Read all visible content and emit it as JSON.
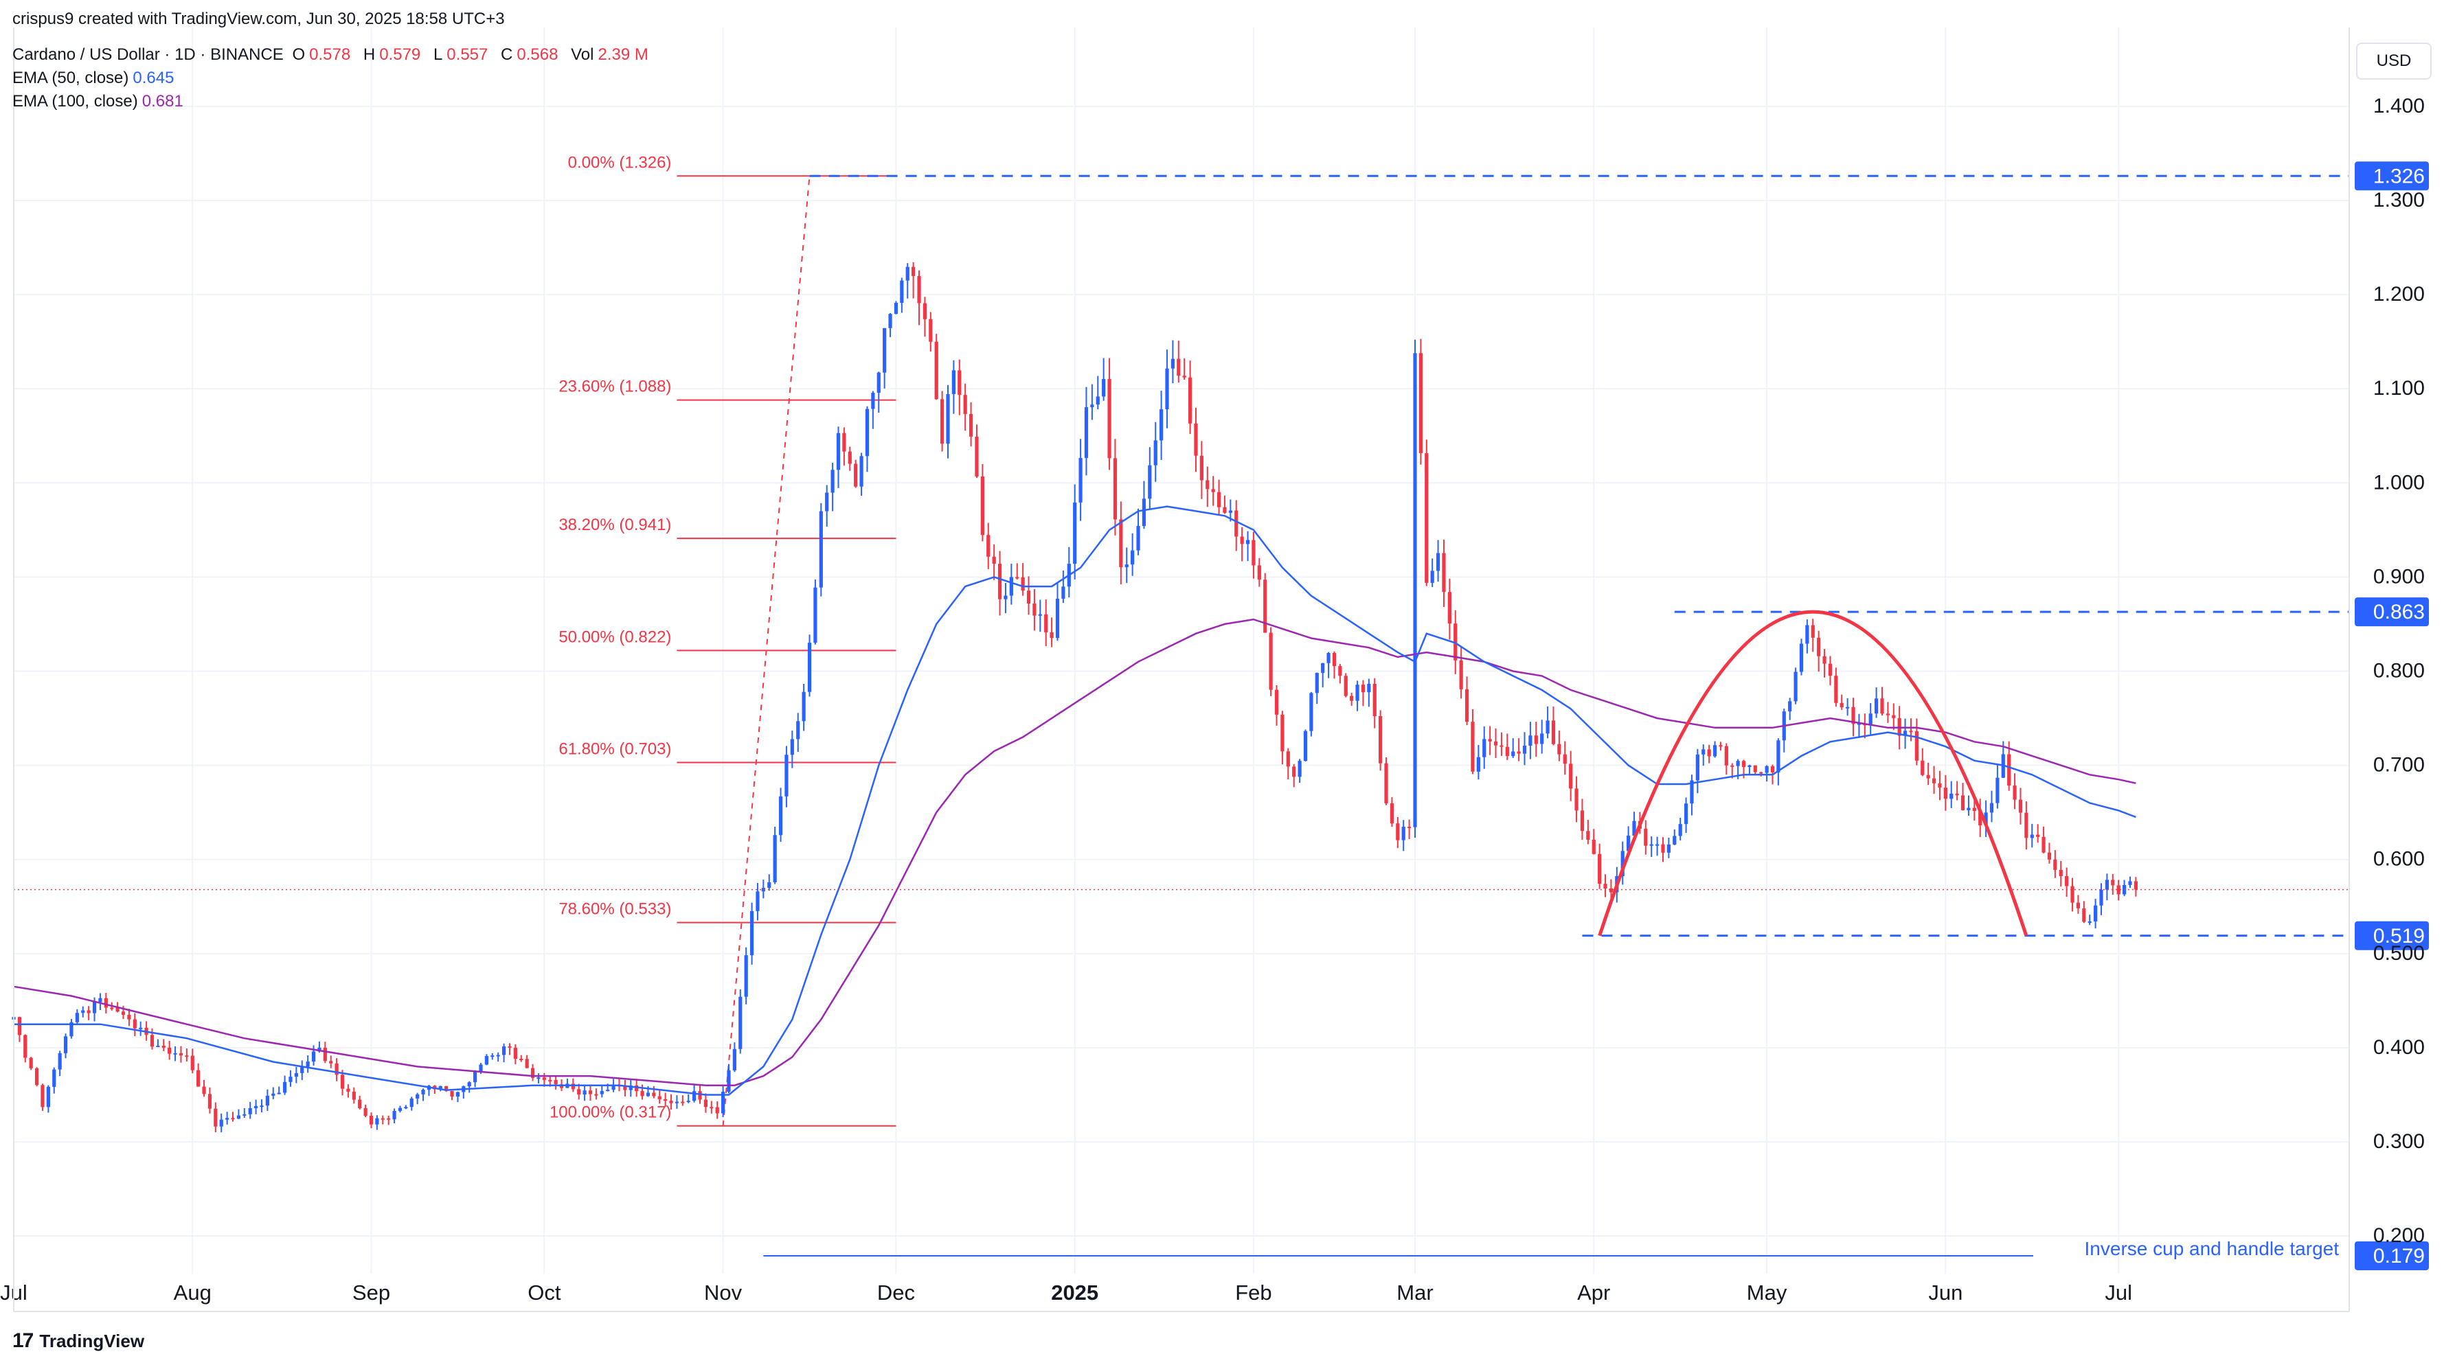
{
  "header": {
    "credit": "crispus9 created with TradingView.com, Jun 30, 2025 18:58 UTC+3",
    "symbol": "Cardano / US Dollar · 1D · BINANCE",
    "ohlc": [
      {
        "label": "O",
        "value": "0.578"
      },
      {
        "label": "H",
        "value": "0.579"
      },
      {
        "label": "L",
        "value": "0.557"
      },
      {
        "label": "C",
        "value": "0.568"
      },
      {
        "label": "Vol",
        "value": "2.39 M"
      }
    ],
    "ema50": {
      "label": "EMA (50, close)",
      "value": "0.645"
    },
    "ema100": {
      "label": "EMA (100, close)",
      "value": "0.681"
    }
  },
  "currency": "USD",
  "brand": "TradingView",
  "colors": {
    "up": "#2962ff",
    "down": "#f23645",
    "ema50": "#2962ff",
    "ema100": "#9c27b0",
    "fib": "#f23645",
    "level": "#2962ff",
    "cup": "#f23645",
    "grid": "#f0f3fa"
  },
  "chart_data": {
    "type": "candlestick",
    "title": "Cardano / US Dollar · 1D · BINANCE",
    "ylim": [
      0.16,
      1.44
    ],
    "y_ticks": [
      "0.200",
      "0.300",
      "0.400",
      "0.500",
      "0.600",
      "0.700",
      "0.800",
      "0.900",
      "1.000",
      "1.100",
      "1.200",
      "1.300",
      "1.400"
    ],
    "x_ticks": [
      {
        "label": "Jul",
        "day": 0
      },
      {
        "label": "Aug",
        "day": 31
      },
      {
        "label": "Sep",
        "day": 62
      },
      {
        "label": "Oct",
        "day": 92
      },
      {
        "label": "Nov",
        "day": 123
      },
      {
        "label": "Dec",
        "day": 153
      },
      {
        "label": "2025",
        "day": 184,
        "bold": true
      },
      {
        "label": "Feb",
        "day": 215
      },
      {
        "label": "Mar",
        "day": 243
      },
      {
        "label": "Apr",
        "day": 274
      },
      {
        "label": "May",
        "day": 304
      },
      {
        "label": "Jun",
        "day": 335
      },
      {
        "label": "Jul",
        "day": 365
      }
    ],
    "last_price": 0.568,
    "price_path": [
      [
        0,
        0.43
      ],
      [
        5,
        0.34
      ],
      [
        10,
        0.43
      ],
      [
        15,
        0.45
      ],
      [
        20,
        0.43
      ],
      [
        25,
        0.4
      ],
      [
        30,
        0.39
      ],
      [
        35,
        0.32
      ],
      [
        40,
        0.33
      ],
      [
        45,
        0.35
      ],
      [
        50,
        0.38
      ],
      [
        53,
        0.4
      ],
      [
        57,
        0.36
      ],
      [
        62,
        0.32
      ],
      [
        66,
        0.33
      ],
      [
        72,
        0.36
      ],
      [
        77,
        0.35
      ],
      [
        82,
        0.39
      ],
      [
        86,
        0.4
      ],
      [
        90,
        0.37
      ],
      [
        95,
        0.36
      ],
      [
        100,
        0.35
      ],
      [
        105,
        0.36
      ],
      [
        110,
        0.35
      ],
      [
        115,
        0.34
      ],
      [
        118,
        0.35
      ],
      [
        122,
        0.33
      ],
      [
        125,
        0.4
      ],
      [
        128,
        0.55
      ],
      [
        131,
        0.58
      ],
      [
        134,
        0.71
      ],
      [
        137,
        0.77
      ],
      [
        140,
        0.96
      ],
      [
        143,
        1.05
      ],
      [
        146,
        1.0
      ],
      [
        149,
        1.1
      ],
      [
        152,
        1.18
      ],
      [
        155,
        1.23
      ],
      [
        158,
        1.18
      ],
      [
        161,
        1.05
      ],
      [
        163,
        1.12
      ],
      [
        166,
        1.05
      ],
      [
        168,
        0.95
      ],
      [
        171,
        0.88
      ],
      [
        174,
        0.9
      ],
      [
        177,
        0.86
      ],
      [
        180,
        0.84
      ],
      [
        183,
        0.92
      ],
      [
        186,
        1.08
      ],
      [
        189,
        1.1
      ],
      [
        192,
        0.9
      ],
      [
        195,
        0.95
      ],
      [
        198,
        1.05
      ],
      [
        201,
        1.14
      ],
      [
        203,
        1.1
      ],
      [
        206,
        1.0
      ],
      [
        209,
        0.98
      ],
      [
        212,
        0.95
      ],
      [
        214,
        0.93
      ],
      [
        216,
        0.9
      ],
      [
        218,
        0.78
      ],
      [
        220,
        0.72
      ],
      [
        222,
        0.68
      ],
      [
        224,
        0.74
      ],
      [
        226,
        0.8
      ],
      [
        228,
        0.82
      ],
      [
        230,
        0.79
      ],
      [
        232,
        0.77
      ],
      [
        235,
        0.79
      ],
      [
        238,
        0.66
      ],
      [
        240,
        0.62
      ],
      [
        242,
        0.64
      ],
      [
        243,
        1.14
      ],
      [
        245,
        0.9
      ],
      [
        247,
        0.92
      ],
      [
        249,
        0.85
      ],
      [
        251,
        0.78
      ],
      [
        253,
        0.7
      ],
      [
        256,
        0.73
      ],
      [
        259,
        0.71
      ],
      [
        262,
        0.72
      ],
      [
        266,
        0.74
      ],
      [
        269,
        0.7
      ],
      [
        271,
        0.65
      ],
      [
        273,
        0.62
      ],
      [
        275,
        0.58
      ],
      [
        277,
        0.56
      ],
      [
        279,
        0.61
      ],
      [
        281,
        0.64
      ],
      [
        283,
        0.62
      ],
      [
        285,
        0.61
      ],
      [
        288,
        0.62
      ],
      [
        290,
        0.66
      ],
      [
        292,
        0.71
      ],
      [
        295,
        0.72
      ],
      [
        298,
        0.7
      ],
      [
        301,
        0.7
      ],
      [
        303,
        0.69
      ],
      [
        305,
        0.7
      ],
      [
        307,
        0.75
      ],
      [
        309,
        0.8
      ],
      [
        311,
        0.85
      ],
      [
        313,
        0.82
      ],
      [
        315,
        0.79
      ],
      [
        317,
        0.76
      ],
      [
        319,
        0.75
      ],
      [
        321,
        0.74
      ],
      [
        323,
        0.77
      ],
      [
        325,
        0.75
      ],
      [
        327,
        0.74
      ],
      [
        329,
        0.73
      ],
      [
        331,
        0.69
      ],
      [
        333,
        0.68
      ],
      [
        335,
        0.67
      ],
      [
        338,
        0.66
      ],
      [
        341,
        0.64
      ],
      [
        343,
        0.66
      ],
      [
        345,
        0.71
      ],
      [
        347,
        0.66
      ],
      [
        349,
        0.63
      ],
      [
        351,
        0.62
      ],
      [
        353,
        0.6
      ],
      [
        355,
        0.58
      ],
      [
        357,
        0.56
      ],
      [
        359,
        0.53
      ],
      [
        361,
        0.55
      ],
      [
        363,
        0.58
      ],
      [
        365,
        0.565
      ],
      [
        367,
        0.575
      ],
      [
        368,
        0.568
      ]
    ],
    "ema50_path": [
      [
        0,
        0.425
      ],
      [
        15,
        0.425
      ],
      [
        30,
        0.41
      ],
      [
        45,
        0.385
      ],
      [
        60,
        0.37
      ],
      [
        75,
        0.355
      ],
      [
        90,
        0.36
      ],
      [
        105,
        0.36
      ],
      [
        120,
        0.35
      ],
      [
        124,
        0.35
      ],
      [
        130,
        0.38
      ],
      [
        135,
        0.43
      ],
      [
        140,
        0.52
      ],
      [
        145,
        0.6
      ],
      [
        150,
        0.7
      ],
      [
        155,
        0.78
      ],
      [
        160,
        0.85
      ],
      [
        165,
        0.89
      ],
      [
        170,
        0.9
      ],
      [
        175,
        0.89
      ],
      [
        180,
        0.89
      ],
      [
        185,
        0.91
      ],
      [
        190,
        0.95
      ],
      [
        195,
        0.97
      ],
      [
        200,
        0.975
      ],
      [
        205,
        0.97
      ],
      [
        210,
        0.965
      ],
      [
        215,
        0.95
      ],
      [
        220,
        0.91
      ],
      [
        225,
        0.88
      ],
      [
        230,
        0.86
      ],
      [
        235,
        0.84
      ],
      [
        240,
        0.82
      ],
      [
        243,
        0.81
      ],
      [
        245,
        0.84
      ],
      [
        250,
        0.83
      ],
      [
        255,
        0.81
      ],
      [
        260,
        0.795
      ],
      [
        265,
        0.78
      ],
      [
        270,
        0.76
      ],
      [
        275,
        0.73
      ],
      [
        280,
        0.7
      ],
      [
        285,
        0.68
      ],
      [
        290,
        0.68
      ],
      [
        295,
        0.685
      ],
      [
        300,
        0.69
      ],
      [
        305,
        0.69
      ],
      [
        310,
        0.71
      ],
      [
        315,
        0.725
      ],
      [
        320,
        0.73
      ],
      [
        325,
        0.735
      ],
      [
        330,
        0.73
      ],
      [
        335,
        0.72
      ],
      [
        340,
        0.705
      ],
      [
        345,
        0.7
      ],
      [
        350,
        0.69
      ],
      [
        355,
        0.675
      ],
      [
        360,
        0.66
      ],
      [
        365,
        0.652
      ],
      [
        368,
        0.645
      ]
    ],
    "ema100_path": [
      [
        0,
        0.465
      ],
      [
        10,
        0.455
      ],
      [
        20,
        0.44
      ],
      [
        30,
        0.425
      ],
      [
        40,
        0.41
      ],
      [
        50,
        0.4
      ],
      [
        60,
        0.39
      ],
      [
        70,
        0.38
      ],
      [
        80,
        0.375
      ],
      [
        90,
        0.37
      ],
      [
        100,
        0.37
      ],
      [
        110,
        0.365
      ],
      [
        120,
        0.36
      ],
      [
        125,
        0.36
      ],
      [
        130,
        0.37
      ],
      [
        135,
        0.39
      ],
      [
        140,
        0.43
      ],
      [
        145,
        0.48
      ],
      [
        150,
        0.53
      ],
      [
        155,
        0.59
      ],
      [
        160,
        0.65
      ],
      [
        165,
        0.69
      ],
      [
        170,
        0.715
      ],
      [
        175,
        0.73
      ],
      [
        180,
        0.75
      ],
      [
        185,
        0.77
      ],
      [
        190,
        0.79
      ],
      [
        195,
        0.81
      ],
      [
        200,
        0.825
      ],
      [
        205,
        0.84
      ],
      [
        210,
        0.85
      ],
      [
        215,
        0.855
      ],
      [
        220,
        0.845
      ],
      [
        225,
        0.835
      ],
      [
        230,
        0.83
      ],
      [
        235,
        0.825
      ],
      [
        240,
        0.815
      ],
      [
        245,
        0.82
      ],
      [
        250,
        0.815
      ],
      [
        255,
        0.81
      ],
      [
        260,
        0.8
      ],
      [
        265,
        0.795
      ],
      [
        270,
        0.78
      ],
      [
        275,
        0.77
      ],
      [
        280,
        0.76
      ],
      [
        285,
        0.75
      ],
      [
        290,
        0.745
      ],
      [
        295,
        0.74
      ],
      [
        300,
        0.74
      ],
      [
        305,
        0.74
      ],
      [
        310,
        0.745
      ],
      [
        315,
        0.75
      ],
      [
        320,
        0.745
      ],
      [
        325,
        0.74
      ],
      [
        330,
        0.74
      ],
      [
        335,
        0.735
      ],
      [
        340,
        0.725
      ],
      [
        345,
        0.72
      ],
      [
        350,
        0.71
      ],
      [
        355,
        0.7
      ],
      [
        360,
        0.69
      ],
      [
        365,
        0.685
      ],
      [
        368,
        0.681
      ]
    ],
    "fibonacci": {
      "start_day": 115,
      "end_day": 153,
      "levels": [
        {
          "label": "0.00% (1.326)",
          "price": 1.326
        },
        {
          "label": "23.60% (1.088)",
          "price": 1.088
        },
        {
          "label": "38.20% (0.941)",
          "price": 0.941
        },
        {
          "label": "50.00% (0.822)",
          "price": 0.822
        },
        {
          "label": "61.80% (0.703)",
          "price": 0.703
        },
        {
          "label": "78.60% (0.533)",
          "price": 0.533
        },
        {
          "label": "100.00% (0.317)",
          "price": 0.317
        }
      ]
    },
    "horizontal_levels": [
      {
        "price": 1.326,
        "label": "1.326",
        "start_day": 138
      },
      {
        "price": 0.863,
        "label": "0.863",
        "start_day": 288
      },
      {
        "price": 0.519,
        "label": "0.519",
        "start_day": 272
      }
    ],
    "target": {
      "price": 0.179,
      "label": "0.179",
      "text": "Inverse cup and handle target",
      "start_day": 130
    },
    "cup": {
      "start_day": 275,
      "end_day": 349,
      "bottom": 0.519,
      "top": 0.863
    }
  }
}
